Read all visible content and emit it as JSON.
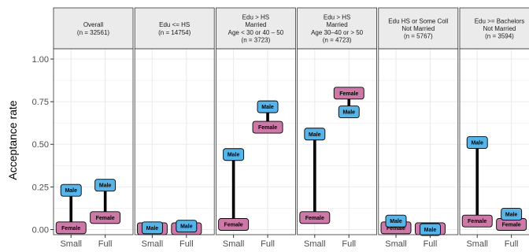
{
  "chart_data": {
    "type": "dumbbell",
    "ylabel": "Acceptance rate",
    "ylim": [
      -0.03,
      1.06
    ],
    "yticks": [
      0.0,
      0.25,
      0.5,
      0.75,
      1.0
    ],
    "ytick_labels": [
      "0.00",
      "0.25",
      "0.50",
      "0.75",
      "1.00"
    ],
    "categories": [
      "Small",
      "Full"
    ],
    "grid": true,
    "colors": {
      "male": "#56b4e9",
      "female": "#cc79a7",
      "segment": "#000000",
      "strip_fill": "#ebebeb",
      "gridline": "#ebebeb",
      "panel_border": "#333333"
    },
    "label_texts": {
      "male": "Male",
      "female": "Female"
    },
    "panels": [
      {
        "strip": [
          "Overall",
          "(n = 32561)"
        ],
        "points": [
          {
            "x": "Small",
            "male": 0.23,
            "female": 0.01
          },
          {
            "x": "Full",
            "male": 0.26,
            "female": 0.07
          }
        ]
      },
      {
        "strip": [
          "Edu <= HS",
          "(n = 14754)"
        ],
        "points": [
          {
            "x": "Small",
            "male": 0.01,
            "female": 0.005
          },
          {
            "x": "Full",
            "male": 0.02,
            "female": 0.005
          }
        ]
      },
      {
        "strip": [
          "Edu > HS",
          "Married",
          "Age < 30 or 40 – 50",
          "(n = 3723)"
        ],
        "points": [
          {
            "x": "Small",
            "male": 0.44,
            "female": 0.03
          },
          {
            "x": "Full",
            "male": 0.72,
            "female": 0.6
          }
        ]
      },
      {
        "strip": [
          "Edu > HS",
          "Married",
          "Age 30–40 or > 50",
          "(n = 4723)"
        ],
        "points": [
          {
            "x": "Small",
            "male": 0.56,
            "female": 0.07
          },
          {
            "x": "Full",
            "male": 0.69,
            "female": 0.8
          }
        ]
      },
      {
        "strip": [
          "Edu HS or Some Coll",
          "Not Married",
          "(n = 5767)"
        ],
        "points": [
          {
            "x": "Small",
            "male": 0.05,
            "female": 0.01
          },
          {
            "x": "Full",
            "male": 0.0,
            "female": 0.005
          }
        ]
      },
      {
        "strip": [
          "Edu >= Bachelors",
          "Not Married",
          "(n = 3594)"
        ],
        "points": [
          {
            "x": "Small",
            "male": 0.51,
            "female": 0.05
          },
          {
            "x": "Full",
            "male": 0.09,
            "female": 0.03
          }
        ]
      }
    ]
  }
}
